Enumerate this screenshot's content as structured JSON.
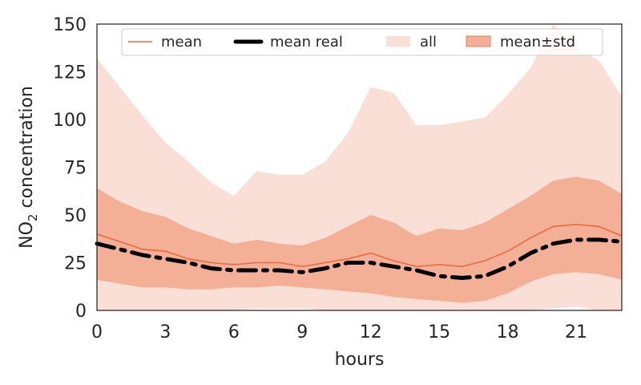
{
  "chart_data": {
    "type": "area",
    "xlabel": "hours",
    "ylabel_main": "NO",
    "ylabel_sub": "2",
    "ylabel_rest": " concentration",
    "xlim": [
      0,
      23
    ],
    "ylim": [
      0,
      150
    ],
    "xticks": [
      0,
      3,
      6,
      9,
      12,
      15,
      18,
      21
    ],
    "yticks": [
      0,
      25,
      50,
      75,
      100,
      125,
      150
    ],
    "grid": false,
    "legend_placement": "top",
    "colors": {
      "all_band": "#f9dfd6",
      "std_band": "#f4b096",
      "mean_line": "#ec6a3c",
      "mean_real_line": "#000000",
      "axes": "#262626"
    },
    "x": [
      0,
      1,
      2,
      3,
      4,
      5,
      6,
      7,
      8,
      9,
      10,
      11,
      12,
      13,
      14,
      15,
      16,
      17,
      18,
      19,
      20,
      21,
      22,
      23
    ],
    "series": [
      {
        "name": "all",
        "lower": [
          0,
          0,
          0,
          0,
          0,
          0,
          0,
          1,
          1,
          1,
          0,
          0,
          0,
          0,
          0,
          0,
          0,
          0,
          0,
          0,
          1,
          2,
          0,
          0
        ],
        "upper": [
          132,
          117,
          102,
          88,
          78,
          67,
          60,
          73,
          71,
          71,
          78,
          93,
          117,
          114,
          97,
          97,
          99,
          101,
          113,
          127,
          150,
          137,
          131,
          112
        ]
      },
      {
        "name": "mean±std",
        "lower": [
          16,
          14,
          12,
          12,
          11,
          11,
          12,
          12,
          13,
          12,
          11,
          10,
          9,
          7,
          6,
          5,
          4,
          5,
          9,
          15,
          19,
          20,
          19,
          16
        ],
        "upper": [
          64,
          57,
          52,
          49,
          43,
          39,
          35,
          37,
          35,
          34,
          38,
          44,
          50,
          46,
          39,
          43,
          42,
          46,
          53,
          60,
          68,
          70,
          68,
          61
        ]
      },
      {
        "name": "mean",
        "values": [
          40,
          36,
          32,
          31,
          27,
          25,
          24,
          25,
          25,
          23,
          25,
          27,
          30,
          26,
          23,
          24,
          23,
          26,
          31,
          38,
          44,
          45,
          44,
          39
        ]
      },
      {
        "name": "mean real",
        "values": [
          35,
          32,
          29,
          27,
          25,
          22,
          21,
          21,
          21,
          20,
          22,
          25,
          25,
          23,
          21,
          18,
          17,
          18,
          23,
          30,
          35,
          37,
          37,
          36
        ]
      }
    ],
    "legend": [
      "mean",
      "mean real",
      "all",
      "mean±std"
    ]
  }
}
